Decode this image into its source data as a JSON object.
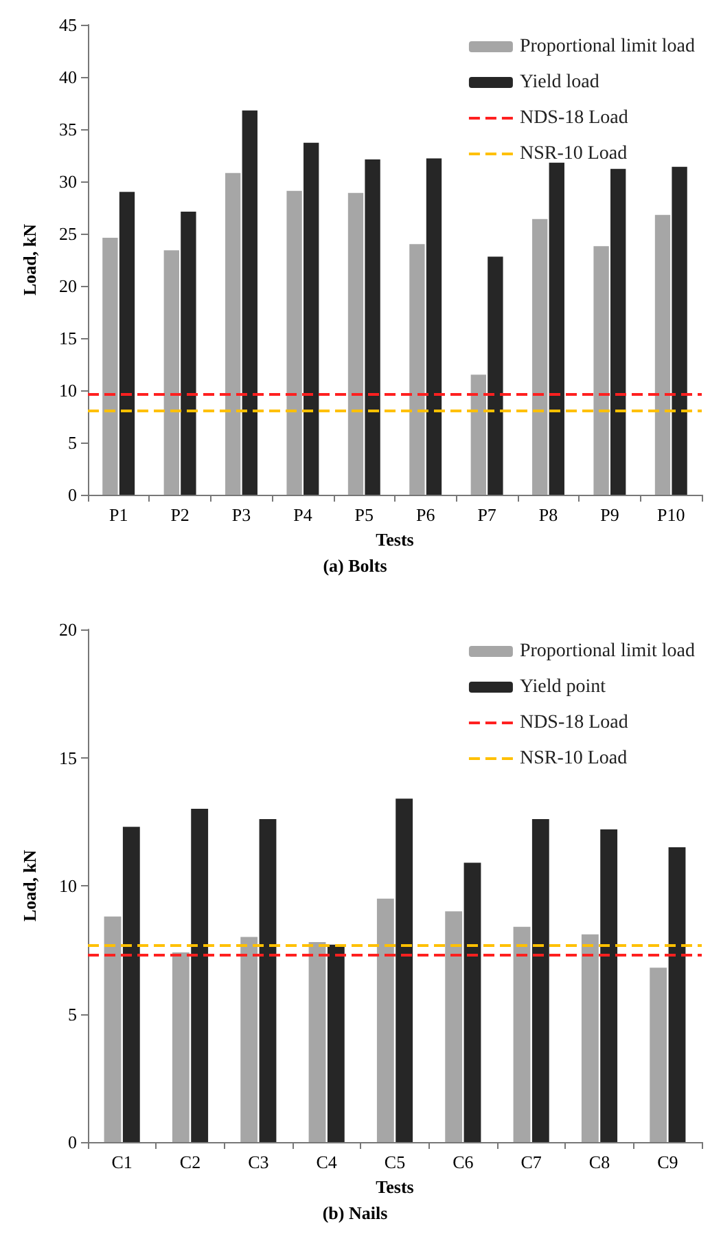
{
  "chart_data": [
    {
      "type": "bar",
      "xlabel": "Tests",
      "ylabel": "Load, kN",
      "annotations": [
        "(a) Bolts"
      ],
      "categories": [
        "P1",
        "P2",
        "P3",
        "P4",
        "P5",
        "P6",
        "P7",
        "P8",
        "P9",
        "P10"
      ],
      "series": [
        {
          "name": "Proportional limit load",
          "color": "#a6a6a6",
          "values": [
            24.6,
            23.4,
            30.8,
            29.1,
            28.9,
            24.0,
            11.5,
            26.4,
            23.8,
            26.8
          ]
        },
        {
          "name": "Yield load",
          "color": "#262626",
          "values": [
            29.0,
            27.1,
            36.8,
            33.7,
            32.1,
            32.2,
            22.8,
            31.8,
            31.2,
            31.4
          ]
        }
      ],
      "ref_lines": [
        {
          "axis": "y",
          "value": 9.6,
          "label": "NDS-18 Load",
          "color": "#ff2020",
          "line_style": "dashed"
        },
        {
          "axis": "y",
          "value": 8.0,
          "label": "NSR-10 Load",
          "color": "#ffc000",
          "line_style": "dashed"
        }
      ],
      "ylim": [
        0,
        45
      ],
      "yticks": [
        0,
        5,
        10,
        15,
        20,
        25,
        30,
        35,
        40,
        45
      ],
      "grid": false,
      "legend": "top right"
    },
    {
      "type": "bar",
      "xlabel": "Tests",
      "ylabel": "Load, kN",
      "annotations": [
        "(b) Nails"
      ],
      "categories": [
        "C1",
        "C2",
        "C3",
        "C4",
        "C5",
        "C6",
        "C7",
        "C8",
        "C9"
      ],
      "series": [
        {
          "name": "Proportional limit load",
          "color": "#a6a6a6",
          "values": [
            8.8,
            7.4,
            8.0,
            7.8,
            9.5,
            9.0,
            8.4,
            8.1,
            6.8
          ]
        },
        {
          "name": "Yield point",
          "color": "#262626",
          "values": [
            12.3,
            13.0,
            12.6,
            7.7,
            13.4,
            10.9,
            12.6,
            12.2,
            11.5
          ]
        }
      ],
      "ref_lines": [
        {
          "axis": "y",
          "value": 7.3,
          "label": "NDS-18 Load",
          "color": "#ff2020",
          "line_style": "dashed"
        },
        {
          "axis": "y",
          "value": 7.7,
          "label": "NSR-10 Load",
          "color": "#ffc000",
          "line_style": "dashed"
        }
      ],
      "ylim": [
        0,
        20
      ],
      "yticks": [
        0,
        5,
        10,
        15,
        20
      ],
      "grid": false,
      "legend": "top right"
    }
  ]
}
